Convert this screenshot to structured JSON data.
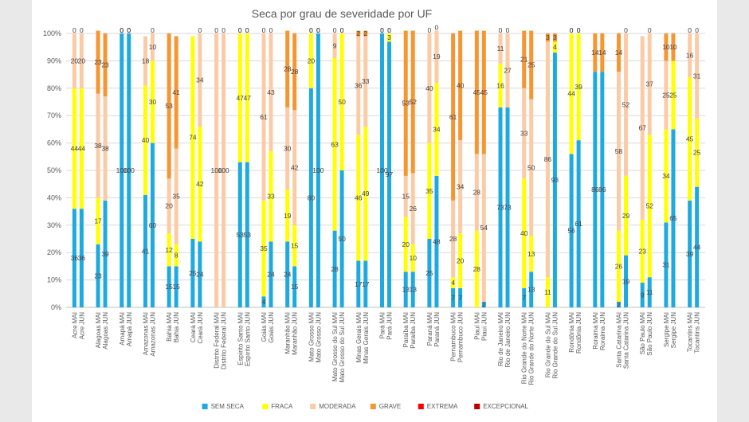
{
  "chart_data": {
    "type": "bar",
    "stacked": "percent",
    "title": "Seca por grau de severidade por UF",
    "yticks": [
      "0%",
      "10%",
      "20%",
      "30%",
      "40%",
      "50%",
      "60%",
      "70%",
      "80%",
      "90%",
      "100%"
    ],
    "ylim": [
      0,
      100
    ],
    "grid": true,
    "legend_position": "bottom",
    "series": [
      {
        "name": "SEM SECA",
        "color": "#1eaadf"
      },
      {
        "name": "FRACA",
        "color": "#ffff00"
      },
      {
        "name": "MODERADA",
        "color": "#fbcba6"
      },
      {
        "name": "GRAVE",
        "color": "#f79530"
      },
      {
        "name": "EXTREMA",
        "color": "#ff0000"
      },
      {
        "name": "EXCEPCIONAL",
        "color": "#c00000"
      }
    ],
    "groups": [
      {
        "bars": [
          {
            "label": "Acre MAI",
            "values": [
              36,
              44,
              20,
              0,
              0,
              0
            ]
          },
          {
            "label": "Acre JUN",
            "values": [
              36,
              44,
              20,
              0,
              0,
              0
            ]
          }
        ]
      },
      {
        "bars": [
          {
            "label": "Alagoas MAI",
            "values": [
              23,
              17,
              38,
              23,
              0,
              0
            ]
          },
          {
            "label": "Alagoas JUN",
            "values": [
              39,
              0,
              38,
              23,
              0,
              0
            ]
          }
        ]
      },
      {
        "bars": [
          {
            "label": "Amapá MAI",
            "values": [
              100,
              0,
              0,
              0,
              0,
              0
            ]
          },
          {
            "label": "Amapá JUN",
            "values": [
              100,
              0,
              0,
              0,
              0,
              0
            ]
          }
        ]
      },
      {
        "bars": [
          {
            "label": "Amazonas MAI",
            "values": [
              41,
              40,
              18,
              0,
              0,
              0
            ]
          },
          {
            "label": "Amazonas JUN",
            "values": [
              60,
              30,
              10,
              0,
              0,
              0
            ]
          }
        ]
      },
      {
        "bars": [
          {
            "label": "Bahia MAI",
            "values": [
              15,
              12,
              20,
              53,
              0,
              0
            ]
          },
          {
            "label": "Bahia JUN",
            "values": [
              15,
              8,
              35,
              41,
              0,
              0
            ]
          }
        ]
      },
      {
        "bars": [
          {
            "label": "Ceará MAI",
            "values": [
              25,
              74,
              0,
              0,
              0,
              0
            ]
          },
          {
            "label": "Ceará JUN",
            "values": [
              24,
              42,
              34,
              0,
              0,
              0
            ]
          }
        ]
      },
      {
        "bars": [
          {
            "label": "Distrito Federal MAI",
            "values": [
              0,
              0,
              100,
              0,
              0,
              0
            ]
          },
          {
            "label": "Distrito Federal JUN",
            "values": [
              0,
              0,
              100,
              0,
              0,
              0
            ]
          }
        ]
      },
      {
        "bars": [
          {
            "label": "Espírito Santo MAI",
            "values": [
              53,
              47,
              0,
              0,
              0,
              0
            ]
          },
          {
            "label": "Espírito Santo JUN",
            "values": [
              53,
              47,
              0,
              0,
              0,
              0
            ]
          }
        ]
      },
      {
        "bars": [
          {
            "label": "Goiás MAI",
            "values": [
              4,
              35,
              61,
              0,
              0,
              0
            ]
          },
          {
            "label": "Goiás JUN",
            "values": [
              24,
              33,
              43,
              0,
              0,
              0
            ]
          }
        ]
      },
      {
        "bars": [
          {
            "label": "Maranhão MAI",
            "values": [
              24,
              19,
              30,
              28,
              0,
              0
            ]
          },
          {
            "label": "Maranhão JUN",
            "values": [
              15,
              15,
              42,
              28,
              0,
              0
            ]
          }
        ]
      },
      {
        "bars": [
          {
            "label": "Mato Grosso MAI",
            "values": [
              80,
              20,
              0,
              0,
              0,
              0
            ]
          },
          {
            "label": "Mato Grosso JUN",
            "values": [
              100,
              0,
              0,
              0,
              0,
              0
            ]
          }
        ]
      },
      {
        "bars": [
          {
            "label": "Mato Grosso do Sul MAI",
            "values": [
              28,
              63,
              9,
              0,
              0,
              0
            ]
          },
          {
            "label": "Mato Grosso do Sul JUN",
            "values": [
              50,
              50,
              0,
              0,
              0,
              0
            ]
          }
        ]
      },
      {
        "bars": [
          {
            "label": "Minas Gerais MAI",
            "values": [
              17,
              46,
              36,
              2,
              0,
              0
            ]
          },
          {
            "label": "Minas Gerais JUN",
            "values": [
              17,
              49,
              33,
              2,
              0,
              0
            ]
          }
        ]
      },
      {
        "bars": [
          {
            "label": "Pará MAI",
            "values": [
              100,
              0,
              0,
              0,
              0,
              0
            ]
          },
          {
            "label": "Pará JUN",
            "values": [
              97,
              3,
              0,
              0,
              0,
              0
            ]
          }
        ]
      },
      {
        "bars": [
          {
            "label": "Paraíba MAI",
            "values": [
              13,
              20,
              15,
              53,
              0,
              0
            ]
          },
          {
            "label": "Paraíba JUN",
            "values": [
              13,
              10,
              26,
              52,
              0,
              0
            ]
          }
        ]
      },
      {
        "bars": [
          {
            "label": "Paraná MAI",
            "values": [
              25,
              35,
              40,
              0,
              0,
              0
            ]
          },
          {
            "label": "Paraná JUN",
            "values": [
              48,
              34,
              19,
              0,
              0,
              0
            ]
          }
        ]
      },
      {
        "bars": [
          {
            "label": "Pernambuco MAI",
            "values": [
              7,
              4,
              28,
              61,
              0,
              0
            ]
          },
          {
            "label": "Pernambuco JUN",
            "values": [
              7,
              20,
              34,
              40,
              0,
              0
            ]
          }
        ]
      },
      {
        "bars": [
          {
            "label": "Piauí MAI",
            "values": [
              0,
              28,
              28,
              45,
              0,
              0
            ]
          },
          {
            "label": "Piauí JUN",
            "values": [
              2,
              0,
              54,
              45,
              0,
              0
            ]
          }
        ]
      },
      {
        "bars": [
          {
            "label": "Rio de Janeiro MAI",
            "values": [
              73,
              16,
              11,
              0,
              0,
              0
            ]
          },
          {
            "label": "Rio de Janeiro JUN",
            "values": [
              73,
              0,
              27,
              0,
              0,
              0
            ]
          }
        ]
      },
      {
        "bars": [
          {
            "label": "Rio Grande do Norte MAI",
            "values": [
              7,
              40,
              33,
              21,
              0,
              0
            ]
          },
          {
            "label": "Rio Grande do Norte JUN",
            "values": [
              13,
              13,
              50,
              25,
              0,
              0
            ]
          }
        ]
      },
      {
        "bars": [
          {
            "label": "Rio Grande do Sul MAI",
            "values": [
              0,
              11,
              86,
              3,
              0,
              0
            ]
          },
          {
            "label": "Rio Grande do Sul JUN",
            "values": [
              93,
              4,
              0,
              3,
              0,
              0
            ]
          }
        ]
      },
      {
        "bars": [
          {
            "label": "Rondônia MAI",
            "values": [
              56,
              44,
              0,
              0,
              0,
              0
            ]
          },
          {
            "label": "Rondônia JUN",
            "values": [
              61,
              39,
              0,
              0,
              0,
              0
            ]
          }
        ]
      },
      {
        "bars": [
          {
            "label": "Roraima MAI",
            "values": [
              86,
              0,
              0,
              14,
              0,
              0
            ]
          },
          {
            "label": "Roraima JUN",
            "values": [
              86,
              0,
              0,
              14,
              0,
              0
            ]
          }
        ]
      },
      {
        "bars": [
          {
            "label": "Santa Catarina MAI",
            "values": [
              2,
              26,
              58,
              14,
              0,
              0
            ]
          },
          {
            "label": "Santa Catarina JUN",
            "values": [
              19,
              29,
              52,
              0,
              0,
              0
            ]
          }
        ]
      },
      {
        "bars": [
          {
            "label": "São Paulo MAI",
            "values": [
              9,
              23,
              67,
              0,
              0,
              0
            ]
          },
          {
            "label": "São Paulo JUN",
            "values": [
              11,
              52,
              37,
              0,
              0,
              0
            ]
          }
        ]
      },
      {
        "bars": [
          {
            "label": "Sergipe MAI",
            "values": [
              31,
              34,
              25,
              10,
              0,
              0
            ]
          },
          {
            "label": "Sergipe JUN",
            "values": [
              65,
              25,
              0,
              10,
              0,
              0
            ]
          }
        ]
      },
      {
        "bars": [
          {
            "label": "Tocantins MAI",
            "values": [
              39,
              45,
              16,
              0,
              0,
              0
            ]
          },
          {
            "label": "Tocantins JUN",
            "values": [
              44,
              25,
              31,
              0,
              0,
              0
            ]
          }
        ]
      }
    ]
  }
}
